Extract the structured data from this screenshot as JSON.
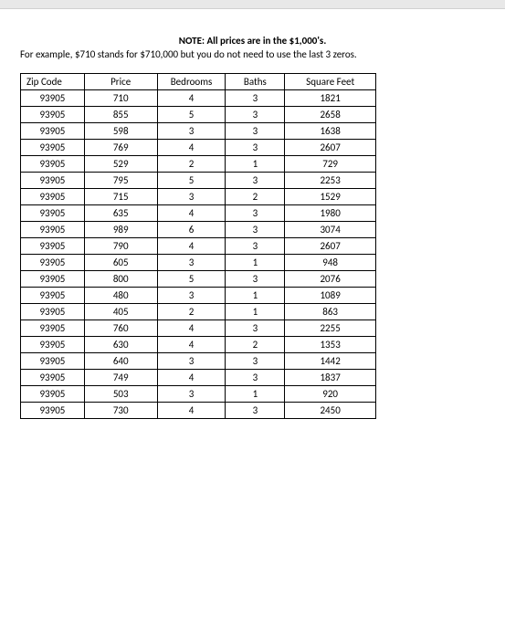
{
  "note": "NOTE: All prices are in the $1,000's.",
  "example": "For example, $710 stands for $710,000 but you do not need to use the last 3 zeros.",
  "table": {
    "columns": [
      "Zip Code",
      "Price",
      "Bedrooms",
      "Baths",
      "Square Feet"
    ],
    "rows": [
      [
        "93905",
        "710",
        "4",
        "3",
        "1821"
      ],
      [
        "93905",
        "855",
        "5",
        "3",
        "2658"
      ],
      [
        "93905",
        "598",
        "3",
        "3",
        "1638"
      ],
      [
        "93905",
        "769",
        "4",
        "3",
        "2607"
      ],
      [
        "93905",
        "529",
        "2",
        "1",
        "729"
      ],
      [
        "93905",
        "795",
        "5",
        "3",
        "2253"
      ],
      [
        "93905",
        "715",
        "3",
        "2",
        "1529"
      ],
      [
        "93905",
        "635",
        "4",
        "3",
        "1980"
      ],
      [
        "93905",
        "989",
        "6",
        "3",
        "3074"
      ],
      [
        "93905",
        "790",
        "4",
        "3",
        "2607"
      ],
      [
        "93905",
        "605",
        "3",
        "1",
        "948"
      ],
      [
        "93905",
        "800",
        "5",
        "3",
        "2076"
      ],
      [
        "93905",
        "480",
        "3",
        "1",
        "1089"
      ],
      [
        "93905",
        "405",
        "2",
        "1",
        "863"
      ],
      [
        "93905",
        "760",
        "4",
        "3",
        "2255"
      ],
      [
        "93905",
        "630",
        "4",
        "2",
        "1353"
      ],
      [
        "93905",
        "640",
        "3",
        "3",
        "1442"
      ],
      [
        "93905",
        "749",
        "4",
        "3",
        "1837"
      ],
      [
        "93905",
        "503",
        "3",
        "1",
        "920"
      ],
      [
        "93905",
        "730",
        "4",
        "3",
        "2450"
      ]
    ]
  }
}
